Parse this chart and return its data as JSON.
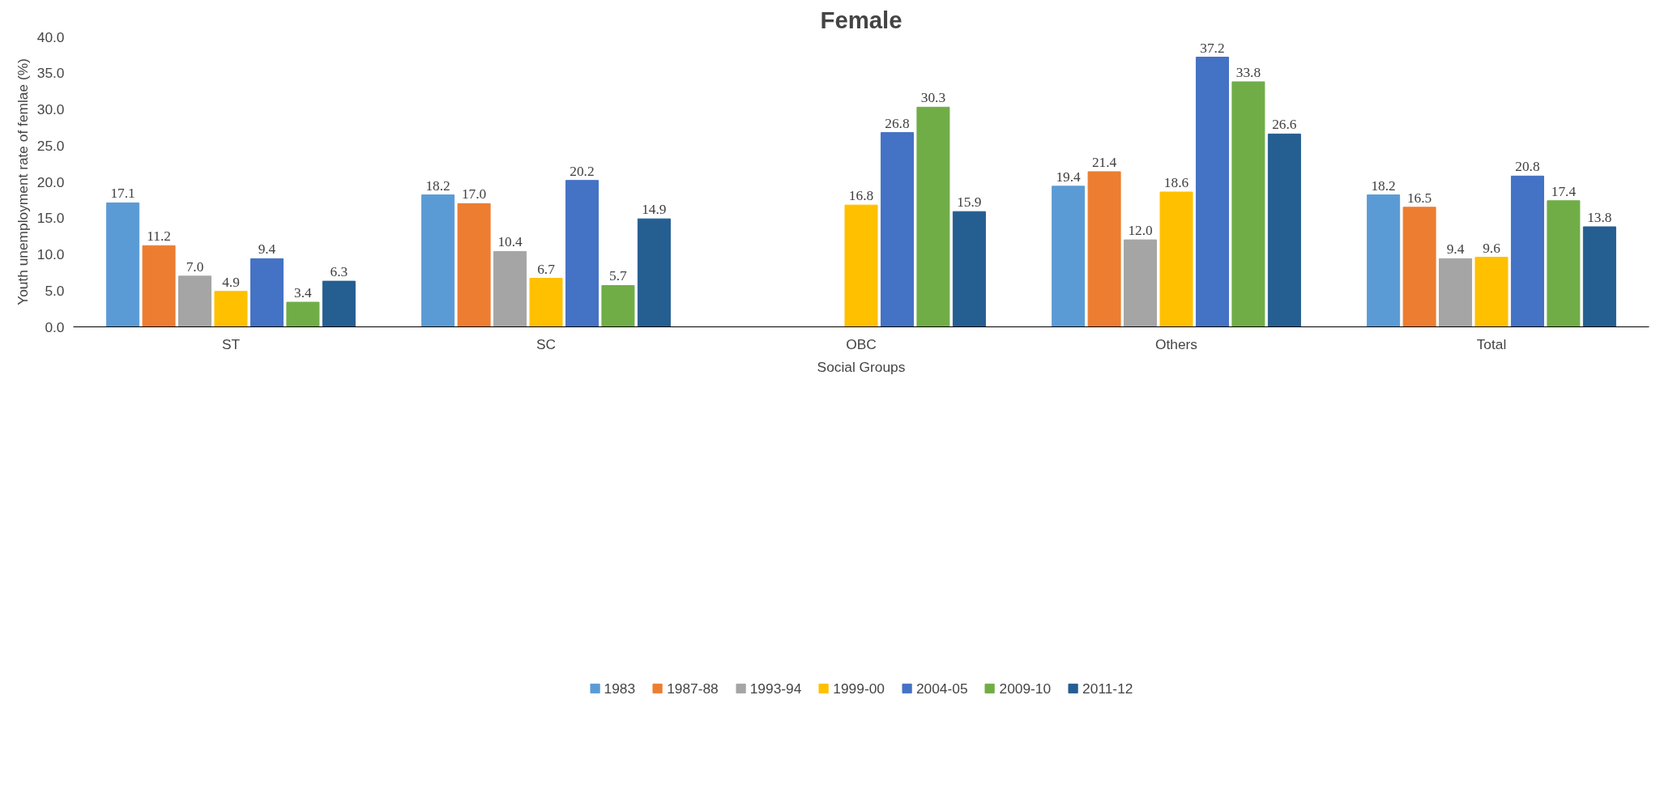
{
  "chart_data": {
    "type": "bar",
    "title": "Female",
    "xlabel": "Social Groups",
    "ylabel": "Youth unemployment rate of femlae (%)",
    "categories": [
      "ST",
      "SC",
      "OBC",
      "Others",
      "Total"
    ],
    "series": [
      {
        "name": "1983",
        "color": "#5b9bd5",
        "values": [
          17.1,
          18.2,
          null,
          19.4,
          18.2
        ],
        "value_labels": [
          "17.1",
          "18.2",
          null,
          "19.4",
          "18.2"
        ]
      },
      {
        "name": "1987-88",
        "color": "#ed7d31",
        "values": [
          11.2,
          17.0,
          null,
          21.4,
          16.5
        ],
        "value_labels": [
          "11.2",
          "17.0",
          null,
          "21.4",
          "16.5"
        ]
      },
      {
        "name": "1993-94",
        "color": "#a5a5a5",
        "values": [
          7.0,
          10.4,
          null,
          12.0,
          9.4
        ],
        "value_labels": [
          "7.0",
          "10.4",
          null,
          "12.0",
          "9.4"
        ]
      },
      {
        "name": "1999-00",
        "color": "#ffc000",
        "values": [
          4.9,
          6.7,
          16.8,
          18.6,
          9.6
        ],
        "value_labels": [
          "4.9",
          "6.7",
          "16.8",
          "18.6",
          "9.6"
        ]
      },
      {
        "name": "2004-05",
        "color": "#4472c4",
        "values": [
          9.4,
          20.2,
          26.8,
          37.2,
          20.8
        ],
        "value_labels": [
          "9.4",
          "20.2",
          "26.8",
          "37.2",
          "20.8"
        ]
      },
      {
        "name": "2009-10",
        "color": "#70ad47",
        "values": [
          3.4,
          5.7,
          30.3,
          33.8,
          17.4
        ],
        "value_labels": [
          "3.4",
          "5.7",
          "30.3",
          "33.8",
          "17.4"
        ]
      },
      {
        "name": "2011-12",
        "color": "#255e91",
        "values": [
          6.3,
          14.9,
          15.9,
          26.6,
          13.8
        ],
        "value_labels": [
          "6.3",
          "14.9",
          "15.9",
          "26.6",
          "13.8"
        ]
      }
    ],
    "ylim": [
      0,
      40
    ],
    "yticks": [
      {
        "value": 0,
        "label": "0.0"
      },
      {
        "value": 5,
        "label": "5.0"
      },
      {
        "value": 10,
        "label": "10.0"
      },
      {
        "value": 15,
        "label": "15.0"
      },
      {
        "value": 20,
        "label": "20.0"
      },
      {
        "value": 25,
        "label": "25.0"
      },
      {
        "value": 30,
        "label": "30.0"
      },
      {
        "value": 35,
        "label": "35.0"
      },
      {
        "value": 40,
        "label": "40.0"
      }
    ],
    "grid": false,
    "legend": "bottom"
  }
}
